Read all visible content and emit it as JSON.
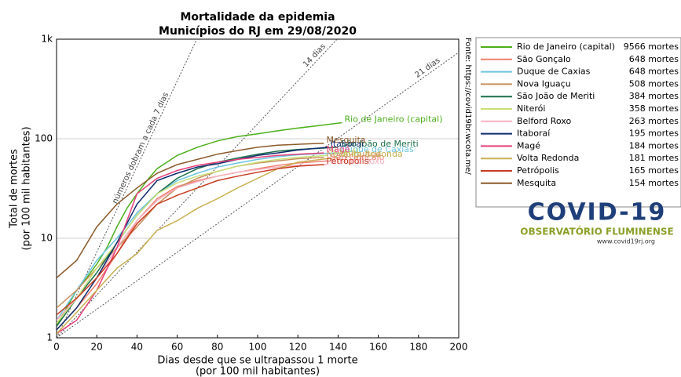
{
  "chart_data": {
    "type": "line",
    "title": "Mortalidade da epidemia",
    "subtitle": "Municípios do RJ em 29/08/2020",
    "x_label": [
      "Dias desde que se ultrapassou 1 morte",
      "(por 100 mil habitantes)"
    ],
    "y_label": [
      "Total de mortes",
      "(por 100 mil habitantes)"
    ],
    "source": "Fonte: https://covid19br.wcota.me/",
    "xlim": [
      0,
      200
    ],
    "ylim": [
      1,
      1000
    ],
    "xticks": [
      0,
      20,
      40,
      60,
      80,
      100,
      120,
      140,
      160,
      180,
      200
    ],
    "yticks": [
      1,
      10,
      100,
      {
        "value": 1000,
        "label": "1k"
      }
    ],
    "log_y": true,
    "grid": "y",
    "legend": "outside-right",
    "doubling_lines": [
      {
        "days": 7,
        "label": "números dobram a cada 7 dias"
      },
      {
        "days": 14,
        "label": "14 dias"
      },
      {
        "days": 21,
        "label": "21 dias"
      }
    ],
    "series": [
      {
        "name": "Rio de Janeiro (capital)",
        "color": "#4daf1a",
        "deaths": 9566,
        "deaths_label": "9566 mortes",
        "x": [
          0,
          5,
          10,
          15,
          20,
          25,
          30,
          35,
          40,
          45,
          50,
          60,
          70,
          80,
          90,
          100,
          110,
          120,
          130,
          142
        ],
        "values": [
          1.3,
          2,
          3,
          4,
          5.5,
          8,
          13,
          20,
          28,
          38,
          50,
          68,
          82,
          95,
          105,
          112,
          120,
          128,
          135,
          145
        ]
      },
      {
        "name": "São Gonçalo",
        "color": "#f08070",
        "deaths": 648,
        "deaths_label": "648 mortes",
        "x": [
          0,
          10,
          20,
          30,
          40,
          50,
          60,
          70,
          80,
          90,
          100,
          110,
          120,
          135
        ],
        "values": [
          1.2,
          2,
          3.5,
          7,
          15,
          25,
          33,
          38,
          42,
          46,
          50,
          54,
          57,
          60
        ]
      },
      {
        "name": "Duque de Caxias",
        "color": "#6cc5e0",
        "deaths": 648,
        "deaths_label": "648 mortes",
        "x": [
          0,
          10,
          20,
          30,
          40,
          50,
          60,
          70,
          80,
          90,
          100,
          110,
          120,
          140
        ],
        "values": [
          1.5,
          3,
          6,
          10,
          18,
          28,
          38,
          45,
          52,
          57,
          62,
          66,
          69,
          72
        ]
      },
      {
        "name": "Nova Iguaçu",
        "color": "#c8905a",
        "deaths": 508,
        "deaths_label": "508 mortes",
        "x": [
          0,
          10,
          20,
          30,
          40,
          50,
          60,
          70,
          80,
          90,
          100,
          110,
          120,
          133
        ],
        "values": [
          2,
          3,
          5,
          8,
          13,
          22,
          32,
          40,
          47,
          53,
          57,
          60,
          63,
          65
        ]
      },
      {
        "name": "São João de Meriti",
        "color": "#1a6e4a",
        "deaths": 384,
        "deaths_label": "384 mortes",
        "x": [
          0,
          10,
          20,
          30,
          40,
          50,
          60,
          70,
          80,
          90,
          100,
          110,
          120,
          140
        ],
        "values": [
          1.3,
          2.5,
          4.5,
          9,
          17,
          28,
          40,
          50,
          58,
          64,
          70,
          75,
          78,
          82
        ]
      },
      {
        "name": "Niterói",
        "color": "#c8e07a",
        "deaths": 358,
        "deaths_label": "358 mortes",
        "x": [
          0,
          10,
          20,
          30,
          40,
          50,
          60,
          70,
          80,
          90,
          100,
          110,
          120,
          135
        ],
        "values": [
          1.4,
          2.5,
          5,
          9,
          17,
          28,
          36,
          42,
          47,
          53,
          58,
          62,
          65,
          68
        ]
      },
      {
        "name": "Belford Roxo",
        "color": "#f5b0c0",
        "deaths": 263,
        "deaths_label": "263 mortes",
        "x": [
          0,
          10,
          20,
          30,
          40,
          50,
          60,
          70,
          80,
          90,
          100,
          110,
          120,
          135
        ],
        "values": [
          1.5,
          2.5,
          4,
          8,
          15,
          24,
          32,
          37,
          42,
          46,
          49,
          52,
          54,
          55
        ]
      },
      {
        "name": "Itaboraí",
        "color": "#102a6e",
        "deaths": 195,
        "deaths_label": "195 mortes",
        "x": [
          0,
          10,
          20,
          30,
          40,
          50,
          60,
          70,
          80,
          90,
          100,
          110,
          120,
          135
        ],
        "values": [
          1.2,
          2,
          4,
          9,
          22,
          38,
          45,
          52,
          56,
          62,
          68,
          72,
          77,
          82
        ]
      },
      {
        "name": "Magé",
        "color": "#e8407a",
        "deaths": 184,
        "deaths_label": "184 mortes",
        "x": [
          0,
          10,
          20,
          30,
          40,
          50,
          60,
          70,
          80,
          90,
          100,
          110,
          120,
          133
        ],
        "values": [
          1.1,
          1.5,
          3,
          8,
          28,
          40,
          48,
          54,
          58,
          62,
          65,
          68,
          70,
          72
        ]
      },
      {
        "name": "Volta Redonda",
        "color": "#c8b050",
        "deaths": 181,
        "deaths_label": "181 mortes",
        "x": [
          0,
          10,
          20,
          30,
          40,
          50,
          60,
          70,
          80,
          90,
          100,
          110,
          120,
          140
        ],
        "values": [
          1.1,
          1.8,
          3,
          5,
          7,
          12,
          15,
          20,
          25,
          32,
          40,
          50,
          58,
          65
        ]
      },
      {
        "name": "Petrópolis",
        "color": "#c83c20",
        "deaths": 165,
        "deaths_label": "165 mortes",
        "x": [
          0,
          10,
          20,
          30,
          40,
          50,
          60,
          70,
          80,
          90,
          100,
          110,
          120,
          133
        ],
        "values": [
          1.7,
          2.5,
          4,
          7,
          14,
          22,
          27,
          32,
          38,
          42,
          46,
          50,
          53,
          55
        ]
      },
      {
        "name": "Mesquita",
        "color": "#8b5a2b",
        "deaths": 154,
        "deaths_label": "154 mortes",
        "x": [
          0,
          10,
          20,
          30,
          40,
          50,
          60,
          70,
          80,
          90,
          100,
          110,
          120,
          133
        ],
        "values": [
          4,
          6,
          13,
          22,
          32,
          45,
          55,
          62,
          70,
          76,
          82,
          86,
          88,
          90
        ]
      }
    ],
    "logo": {
      "title": "COVID-19",
      "subtitle": "OBSERVATÓRIO FLUMINENSE",
      "url": "www.covid19rj.org"
    }
  }
}
